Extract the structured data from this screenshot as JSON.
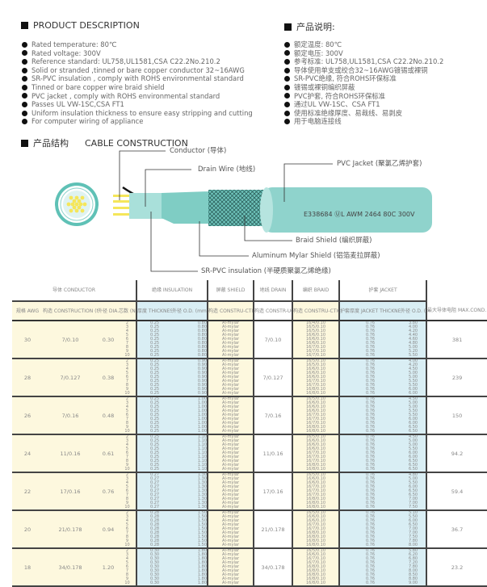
{
  "en": {
    "title": "PRODUCT DESCRIPTION",
    "items": [
      "Rated temperature: 80℃",
      "Rated voltage: 300V",
      "Reference standard: UL758,UL1581,CSA C22.2No.210.2",
      "Solid or stranded ,tinned or bare copper conductor 32~16AWG",
      "SR-PVC insulation , comply with ROHS environmental standard",
      "Tinned or bare copper wire braid shield",
      "PVC jacket , comply with ROHS environmental standard",
      "Passes UL VW-1SC,CSA FT1",
      "Uniform insulation thickness to ensure easy stripping and cutting",
      "For computer wiring of appliance"
    ]
  },
  "cn": {
    "title": "产品说明:",
    "items": [
      "额定温度: 80℃",
      "额定电压: 300V",
      "参考标准: UL758,UL1581,CSA C22.2No.210.2",
      "导体使用单支或绞合32~16AWG镀锡或裸铜",
      "SR-PVC绝缘, 符合ROHS环保标准",
      "镀锡或裸铜编织屏蔽",
      "PVC护套, 符合ROHS环保标准",
      "通过UL VW-1SC、CSA FT1",
      "使用标准绝缘厚度、易裁线、易剥皮",
      "用于电脑连接线"
    ]
  },
  "construction": {
    "title_cn": "产品结构",
    "title_en": "CABLE CONSTRUCTION",
    "conductor": "Conductor (导体)",
    "drain": "Drain Wire (地线)",
    "jacket": "PVC Jacket (聚氯乙烯护套)",
    "marking": "E338684 ⓊL AWM 2464 80C 300V",
    "braid": "Braid Shield (编织屏蔽)",
    "mylar": "Aluminum Mylar Shield (铝箔麦拉屏蔽)",
    "insulation": "SR-PVC insulation (半硬质聚氯乙烯绝缘)",
    "colors": {
      "jacket": "#8fd3cc",
      "conductor": "#f5e65a"
    }
  },
  "table": {
    "groups": {
      "conductor": "导体 CONDUCTOR",
      "insulation": "绝缘 INSULATION",
      "shield": "屏蔽 SHIELD",
      "drain": "地线 DRAIN",
      "braid": "编织 BRAID",
      "jacket": "护套 JACKET"
    },
    "cols": {
      "awg": "规格 AWG",
      "construction": "构造 CONSTRUCTION (No./mm)",
      "dia": "外径 DIA. (mm)",
      "cores": "芯数 (NO.)",
      "ins_thk": "厚度 THICKNESS (mm)",
      "ins_od": "外径 O.D. (mm)",
      "shield": "构造 CONSTRU-CTION",
      "drain": "构造 CONSTR-UCTION (No./mm)",
      "braid": "构造 CONSTRU-CTION (No./No./mm)",
      "jk_thk": "护套厚度 JACKET THICKNESS(mm)",
      "jk_od": "外径 O.D. (mm)",
      "res": "最大导体电阻 MAX.COND. RESISTANCE (Ω/km,20℃,DC)"
    },
    "cores": [
      "2",
      "3",
      "4",
      "5",
      "6",
      "7",
      "8",
      "9",
      "10"
    ],
    "shield": "Al-mylar",
    "rows": [
      {
        "awg": "30",
        "construction": "7/0.10",
        "dia": "0.30",
        "ins_thk": "0.25",
        "ins_od": "0.80",
        "drain": "7/0.10",
        "braid": [
          "16/4/0.10",
          "16/5/0.10",
          "16/5/0.10",
          "16/6/0.10",
          "16/6/0.10",
          "16/6/0.10",
          "16/7/0.10",
          "16/7/0.10",
          "16/7/0.10"
        ],
        "jk_thk": "0.76",
        "jk_od": [
          "3.80",
          "4.00",
          "4.20",
          "4.40",
          "4.60",
          "4.80",
          "5.00",
          "5.20",
          "5.50"
        ],
        "res": "381"
      },
      {
        "awg": "28",
        "construction": "7/0.127",
        "dia": "0.38",
        "ins_thk": "0.25",
        "ins_od": "0.90",
        "drain": "7/0.127",
        "braid": [
          "16/5/0.10",
          "16/5/0.10",
          "16/6/0.10",
          "16/6/0.10",
          "16/6/0.10",
          "16/7/0.10",
          "16/7/0.10",
          "16/8/0.10",
          "16/8/0.10"
        ],
        "jk_thk": "0.76",
        "jk_od": [
          "4.00",
          "4.20",
          "4.50",
          "5.00",
          "5.00",
          "5.50",
          "5.50",
          "6.00",
          "6.00"
        ],
        "res": "239"
      },
      {
        "awg": "26",
        "construction": "7/0.16",
        "dia": "0.48",
        "ins_thk": "0.25",
        "ins_od": "1.00",
        "drain": "7/0.16",
        "braid": [
          "16/5/0.10",
          "16/6/0.10",
          "16/6/0.10",
          "16/6/0.10",
          "16/7/0.10",
          "16/7/0.10",
          "16/7/0.10",
          "16/8/0.10",
          "16/8/0.10"
        ],
        "jk_thk": "0.76",
        "jk_od": [
          "4.50",
          "5.00",
          "5.00",
          "5.50",
          "5.50",
          "6.00",
          "6.00",
          "6.50",
          "6.50"
        ],
        "res": "150"
      },
      {
        "awg": "24",
        "construction": "11/0.16",
        "dia": "0.61",
        "ins_thk": "0.25",
        "ins_od": "1.10",
        "drain": "11/0.16",
        "braid": [
          "16/5/0.10",
          "16/6/0.10",
          "16/6/0.10",
          "16/6/0.10",
          "16/7/0.10",
          "16/7/0.10",
          "16/7/0.10",
          "16/8/0.10",
          "16/8/0.10"
        ],
        "jk_thk": "0.76",
        "jk_od": [
          "4.50",
          "5.00",
          "5.00",
          "5.50",
          "6.00",
          "6.00",
          "6.50",
          "6.50",
          "6.50"
        ],
        "res": "94.2"
      },
      {
        "awg": "22",
        "construction": "17/0.16",
        "dia": "0.76",
        "ins_thk": "0.27",
        "ins_od": "1.30",
        "drain": "17/0.16",
        "braid": [
          "16/5/0.10",
          "16/6/0.10",
          "16/6/0.10",
          "16/7/0.10",
          "16/7/0.10",
          "16/7/0.10",
          "16/8/0.10",
          "16/8/0.10",
          "16/8/0.10"
        ],
        "jk_thk": "0.76",
        "jk_od": [
          "4.80",
          "5.00",
          "5.50",
          "6.00",
          "6.50",
          "6.50",
          "7.00",
          "7.00",
          "7.50"
        ],
        "res": "59.4"
      },
      {
        "awg": "20",
        "construction": "21/0.178",
        "dia": "0.94",
        "ins_thk": "0.28",
        "ins_od": "1.50",
        "drain": "21/0.178",
        "braid": [
          "16/5/0.10",
          "16/6/0.10",
          "16/6/0.10",
          "16/7/0.10",
          "16/7/0.10",
          "16/8/0.10",
          "16/8/0.10",
          "16/8/0.10",
          "16/8/0.10"
        ],
        "jk_thk": "0.76",
        "jk_od": [
          "5.10",
          "5.50",
          "6.00",
          "6.50",
          "7.00",
          "7.00",
          "7.50",
          "7.80",
          "8.00"
        ],
        "res": "36.7"
      },
      {
        "awg": "18",
        "construction": "34/0.178",
        "dia": "1.20",
        "ins_thk": "0.30",
        "ins_od": "1.80",
        "drain": "34/0.178",
        "braid": [
          "16/5/0.10",
          "16/6/0.10",
          "16/7/0.10",
          "16/7/0.10",
          "16/8/0.10",
          "16/8/0.10",
          "16/8/0.10",
          "16/8/0.10",
          "16/8/0.10"
        ],
        "jk_thk": "0.76",
        "jk_od": [
          "5.80",
          "6.20",
          "6.80",
          "7.20",
          "7.80",
          "8.00",
          "8.50",
          "8.80",
          "9.00"
        ],
        "res": "23.2"
      }
    ]
  }
}
